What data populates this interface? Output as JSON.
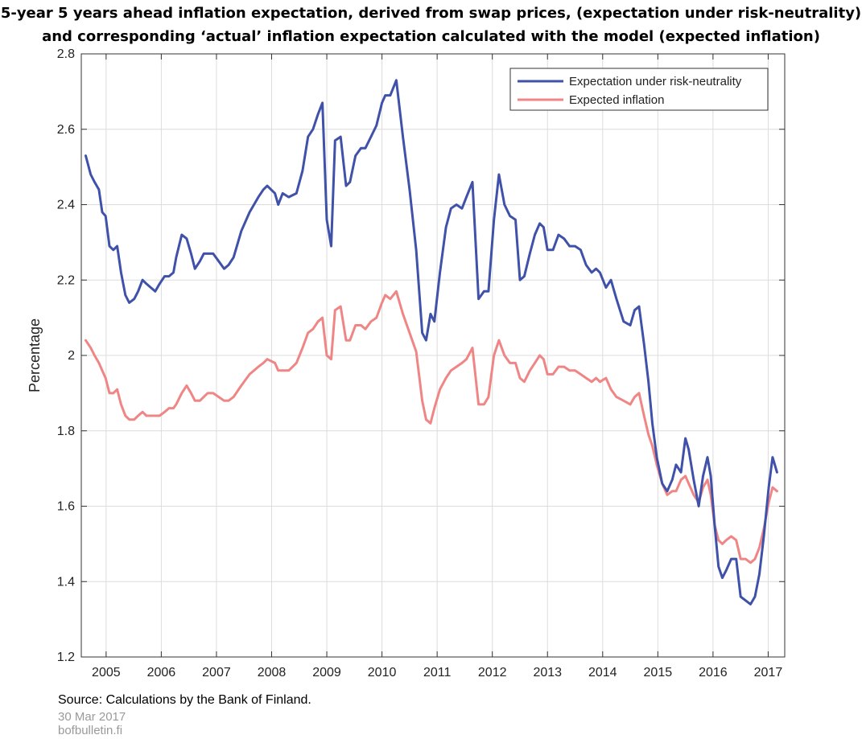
{
  "title_lines": [
    "5-year 5 years ahead inflation expectation, derived from swap prices, (expectation  under risk-neutrality)",
    "and corresponding ‘actual’ inflation expectation calculated with the model (expected inflation)"
  ],
  "footer": {
    "source": "Source: Calculations by the Bank of Finland.",
    "date": "30 Mar 2017",
    "site": "bofbulletin.fi"
  },
  "chart_data": {
    "type": "line",
    "title": "5-year 5 years ahead inflation expectation, derived from swap prices, (expectation  under risk-neutrality) and corresponding ‘actual’ inflation expectation calculated with the model (expected inflation)",
    "xlabel": "",
    "ylabel": "Percentage",
    "xlim": [
      2004.55,
      2017.3
    ],
    "ylim": [
      1.2,
      2.8
    ],
    "x_ticks": [
      2005,
      2006,
      2007,
      2008,
      2009,
      2010,
      2011,
      2012,
      2013,
      2014,
      2015,
      2016,
      2017
    ],
    "x_tick_labels": [
      "2005",
      "2006",
      "2007",
      "2008",
      "2009",
      "2010",
      "2011",
      "2012",
      "2013",
      "2014",
      "2015",
      "2016",
      "2017"
    ],
    "y_ticks": [
      1.2,
      1.4,
      1.6,
      1.8,
      2,
      2.2,
      2.4,
      2.6,
      2.8
    ],
    "y_tick_labels": [
      "1.2",
      "1.4",
      "1.6",
      "1.8",
      "2",
      "2.2",
      "2.4",
      "2.6",
      "2.8"
    ],
    "grid": true,
    "legend_position": "top-right",
    "series": [
      {
        "name": "Expectation under risk-neutrality",
        "color": "#3f51a8",
        "x": [
          2004.63,
          2004.72,
          2004.79,
          2004.87,
          2004.93,
          2004.99,
          2005.06,
          2005.13,
          2005.2,
          2005.27,
          2005.35,
          2005.42,
          2005.51,
          2005.58,
          2005.66,
          2005.73,
          2005.81,
          2005.89,
          2005.97,
          2006.06,
          2006.14,
          2006.22,
          2006.27,
          2006.37,
          2006.46,
          2006.54,
          2006.61,
          2006.7,
          2006.77,
          2006.84,
          2006.94,
          2007.04,
          2007.14,
          2007.22,
          2007.31,
          2007.45,
          2007.6,
          2007.76,
          2007.85,
          2007.92,
          2008.06,
          2008.12,
          2008.2,
          2008.31,
          2008.45,
          2008.56,
          2008.66,
          2008.75,
          2008.84,
          2008.92,
          2009.0,
          2009.08,
          2009.15,
          2009.25,
          2009.35,
          2009.42,
          2009.52,
          2009.62,
          2009.7,
          2009.8,
          2009.9,
          2010.0,
          2010.06,
          2010.15,
          2010.26,
          2010.38,
          2010.5,
          2010.62,
          2010.73,
          2010.8,
          2010.88,
          2010.95,
          2011.05,
          2011.16,
          2011.25,
          2011.35,
          2011.45,
          2011.53,
          2011.64,
          2011.75,
          2011.85,
          2011.93,
          2012.03,
          2012.12,
          2012.22,
          2012.32,
          2012.42,
          2012.5,
          2012.58,
          2012.68,
          2012.77,
          2012.86,
          2012.93,
          2013.0,
          2013.1,
          2013.2,
          2013.3,
          2013.4,
          2013.5,
          2013.6,
          2013.7,
          2013.8,
          2013.88,
          2013.95,
          2014.06,
          2014.15,
          2014.25,
          2014.38,
          2014.5,
          2014.58,
          2014.66,
          2014.75,
          2014.83,
          2014.9,
          2014.98,
          2015.08,
          2015.17,
          2015.26,
          2015.33,
          2015.42,
          2015.5,
          2015.56,
          2015.65,
          2015.74,
          2015.82,
          2015.9,
          2015.96,
          2016.03,
          2016.1,
          2016.17,
          2016.24,
          2016.33,
          2016.42,
          2016.5,
          2016.59,
          2016.68,
          2016.76,
          2016.84,
          2016.92,
          2017.01,
          2017.08,
          2017.16
        ],
        "values": [
          2.53,
          2.48,
          2.46,
          2.44,
          2.38,
          2.37,
          2.29,
          2.28,
          2.29,
          2.22,
          2.16,
          2.14,
          2.15,
          2.17,
          2.2,
          2.19,
          2.18,
          2.17,
          2.19,
          2.21,
          2.21,
          2.22,
          2.26,
          2.32,
          2.31,
          2.27,
          2.23,
          2.25,
          2.27,
          2.27,
          2.27,
          2.25,
          2.23,
          2.24,
          2.26,
          2.33,
          2.38,
          2.42,
          2.44,
          2.45,
          2.43,
          2.4,
          2.43,
          2.42,
          2.43,
          2.49,
          2.58,
          2.6,
          2.64,
          2.67,
          2.36,
          2.29,
          2.57,
          2.58,
          2.45,
          2.46,
          2.53,
          2.55,
          2.55,
          2.58,
          2.61,
          2.67,
          2.69,
          2.69,
          2.73,
          2.58,
          2.44,
          2.28,
          2.06,
          2.04,
          2.11,
          2.09,
          2.22,
          2.34,
          2.39,
          2.4,
          2.39,
          2.42,
          2.46,
          2.15,
          2.17,
          2.17,
          2.36,
          2.48,
          2.4,
          2.37,
          2.36,
          2.2,
          2.21,
          2.27,
          2.32,
          2.35,
          2.34,
          2.28,
          2.28,
          2.32,
          2.31,
          2.29,
          2.29,
          2.28,
          2.24,
          2.22,
          2.23,
          2.22,
          2.18,
          2.2,
          2.15,
          2.09,
          2.08,
          2.12,
          2.13,
          2.03,
          1.93,
          1.82,
          1.73,
          1.66,
          1.64,
          1.67,
          1.71,
          1.69,
          1.78,
          1.75,
          1.67,
          1.6,
          1.68,
          1.73,
          1.68,
          1.55,
          1.44,
          1.41,
          1.43,
          1.46,
          1.46,
          1.36,
          1.35,
          1.34,
          1.36,
          1.42,
          1.52,
          1.65,
          1.73,
          1.69
        ]
      },
      {
        "name": "Expected inflation",
        "color": "#ef8585",
        "x": [
          2004.63,
          2004.72,
          2004.79,
          2004.87,
          2004.93,
          2004.99,
          2005.06,
          2005.13,
          2005.2,
          2005.27,
          2005.35,
          2005.42,
          2005.51,
          2005.58,
          2005.66,
          2005.73,
          2005.81,
          2005.89,
          2005.97,
          2006.06,
          2006.14,
          2006.22,
          2006.27,
          2006.37,
          2006.46,
          2006.54,
          2006.61,
          2006.7,
          2006.77,
          2006.84,
          2006.94,
          2007.04,
          2007.14,
          2007.22,
          2007.31,
          2007.45,
          2007.6,
          2007.76,
          2007.85,
          2007.92,
          2008.06,
          2008.12,
          2008.2,
          2008.31,
          2008.45,
          2008.56,
          2008.66,
          2008.75,
          2008.84,
          2008.92,
          2009.0,
          2009.08,
          2009.15,
          2009.25,
          2009.35,
          2009.42,
          2009.52,
          2009.62,
          2009.7,
          2009.8,
          2009.9,
          2010.0,
          2010.06,
          2010.15,
          2010.26,
          2010.38,
          2010.5,
          2010.62,
          2010.73,
          2010.8,
          2010.88,
          2010.95,
          2011.05,
          2011.16,
          2011.25,
          2011.35,
          2011.45,
          2011.53,
          2011.64,
          2011.75,
          2011.85,
          2011.93,
          2012.03,
          2012.12,
          2012.22,
          2012.32,
          2012.42,
          2012.5,
          2012.58,
          2012.68,
          2012.77,
          2012.86,
          2012.93,
          2013.0,
          2013.1,
          2013.2,
          2013.3,
          2013.4,
          2013.5,
          2013.6,
          2013.7,
          2013.8,
          2013.88,
          2013.95,
          2014.06,
          2014.15,
          2014.25,
          2014.38,
          2014.5,
          2014.58,
          2014.66,
          2014.75,
          2014.83,
          2014.9,
          2014.98,
          2015.08,
          2015.17,
          2015.26,
          2015.33,
          2015.42,
          2015.5,
          2015.56,
          2015.65,
          2015.74,
          2015.82,
          2015.9,
          2015.96,
          2016.03,
          2016.1,
          2016.17,
          2016.24,
          2016.33,
          2016.42,
          2016.5,
          2016.59,
          2016.68,
          2016.76,
          2016.84,
          2016.92,
          2017.01,
          2017.08,
          2017.16
        ],
        "values": [
          2.04,
          2.02,
          2.0,
          1.98,
          1.96,
          1.94,
          1.9,
          1.9,
          1.91,
          1.87,
          1.84,
          1.83,
          1.83,
          1.84,
          1.85,
          1.84,
          1.84,
          1.84,
          1.84,
          1.85,
          1.86,
          1.86,
          1.87,
          1.9,
          1.92,
          1.9,
          1.88,
          1.88,
          1.89,
          1.9,
          1.9,
          1.89,
          1.88,
          1.88,
          1.89,
          1.92,
          1.95,
          1.97,
          1.98,
          1.99,
          1.98,
          1.96,
          1.96,
          1.96,
          1.98,
          2.02,
          2.06,
          2.07,
          2.09,
          2.1,
          2.0,
          1.99,
          2.12,
          2.13,
          2.04,
          2.04,
          2.08,
          2.08,
          2.07,
          2.09,
          2.1,
          2.14,
          2.16,
          2.15,
          2.17,
          2.11,
          2.06,
          2.01,
          1.88,
          1.83,
          1.82,
          1.86,
          1.91,
          1.94,
          1.96,
          1.97,
          1.98,
          1.99,
          2.02,
          1.87,
          1.87,
          1.89,
          2.0,
          2.04,
          2.0,
          1.98,
          1.98,
          1.94,
          1.93,
          1.96,
          1.98,
          2.0,
          1.99,
          1.95,
          1.95,
          1.97,
          1.97,
          1.96,
          1.96,
          1.95,
          1.94,
          1.93,
          1.94,
          1.93,
          1.94,
          1.91,
          1.89,
          1.88,
          1.87,
          1.89,
          1.9,
          1.84,
          1.79,
          1.76,
          1.71,
          1.66,
          1.63,
          1.64,
          1.64,
          1.67,
          1.68,
          1.66,
          1.63,
          1.61,
          1.65,
          1.67,
          1.63,
          1.55,
          1.51,
          1.5,
          1.51,
          1.52,
          1.51,
          1.46,
          1.46,
          1.45,
          1.46,
          1.49,
          1.54,
          1.61,
          1.65,
          1.64
        ]
      }
    ]
  }
}
